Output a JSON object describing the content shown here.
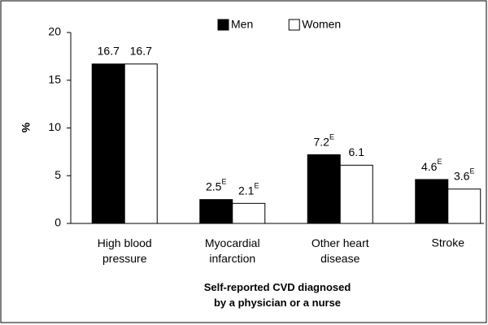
{
  "chart_data": {
    "type": "bar",
    "categories": [
      "High blood\npressure",
      "Myocardial\ninfarction",
      "Other heart\ndisease",
      "Stroke"
    ],
    "series": [
      {
        "name": "Men",
        "color": "#000000",
        "values": [
          16.7,
          2.5,
          7.2,
          4.6
        ],
        "value_labels": [
          "16.7",
          "2.5E",
          "7.2E",
          "4.6E"
        ]
      },
      {
        "name": "Women",
        "color": "#ffffff",
        "values": [
          16.7,
          2.1,
          6.1,
          3.6
        ],
        "value_labels": [
          "16.7",
          "2.1E",
          "6.1",
          "3.6E"
        ]
      }
    ],
    "ylabel": "%",
    "xlabel": "Self-reported CVD diagnosed\nby a physician or a nurse",
    "ylim": [
      0,
      20
    ],
    "yticks": [
      0,
      5,
      10,
      15,
      20
    ],
    "legend": "top"
  }
}
